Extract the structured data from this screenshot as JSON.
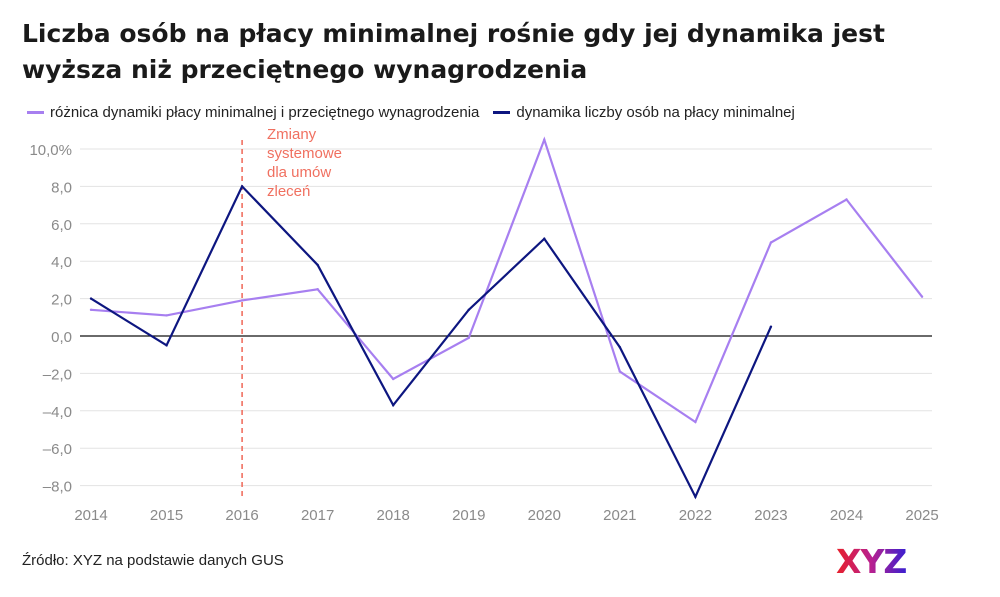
{
  "header": {
    "title": "Liczba osób na płacy minimalnej rośnie gdy jej dynamika jest wyższa niż przeciętnego wynagrodzenia"
  },
  "footer": {
    "source": "Źródło: XYZ na podstawie danych GUS",
    "logo_text": "XYZ"
  },
  "colors": {
    "series_diff": "#a77ff0",
    "series_count": "#0d1680",
    "annotation": "#f07060",
    "grid": "#e3e3e3",
    "zero_line": "#111111",
    "tick": "#8a8a8a"
  },
  "chart_data": {
    "type": "line",
    "title": "Liczba osób na płacy minimalnej rośnie gdy jej dynamika jest wyższa niż przeciętnego wynagrodzenia",
    "xlabel": "",
    "ylabel": "",
    "categories": [
      "2014",
      "2015",
      "2016",
      "2017",
      "2018",
      "2019",
      "2020",
      "2021",
      "2022",
      "2023",
      "2024",
      "2025"
    ],
    "y_ticks": [
      10,
      8,
      6,
      4,
      2,
      0,
      -2,
      -4,
      -6,
      -8
    ],
    "y_tick_labels": [
      "10,0%",
      "8,0",
      "6,0",
      "4,0",
      "2,0",
      "0,0",
      "–2,0",
      "–4,0",
      "–6,0",
      "–8,0"
    ],
    "ylim": [
      -8.5,
      10.5
    ],
    "grid": true,
    "legend_position": "top-left",
    "series": [
      {
        "name": "różnica dynamiki płacy minimalnej i przeciętnego wynagrodzenia",
        "values": [
          1.4,
          1.1,
          1.9,
          2.5,
          -2.3,
          -0.1,
          10.5,
          -1.9,
          -4.6,
          5.0,
          7.3,
          2.1
        ]
      },
      {
        "name": "dynamika liczby osób na płacy minimalnej",
        "values": [
          2.0,
          -0.5,
          8.0,
          3.8,
          -3.7,
          1.4,
          5.2,
          -0.6,
          -8.6,
          0.5,
          null,
          null
        ]
      }
    ],
    "annotation": {
      "category": "2016",
      "lines": [
        "Zmiany",
        "systemowe",
        "dla umów",
        "zleceń"
      ]
    }
  }
}
